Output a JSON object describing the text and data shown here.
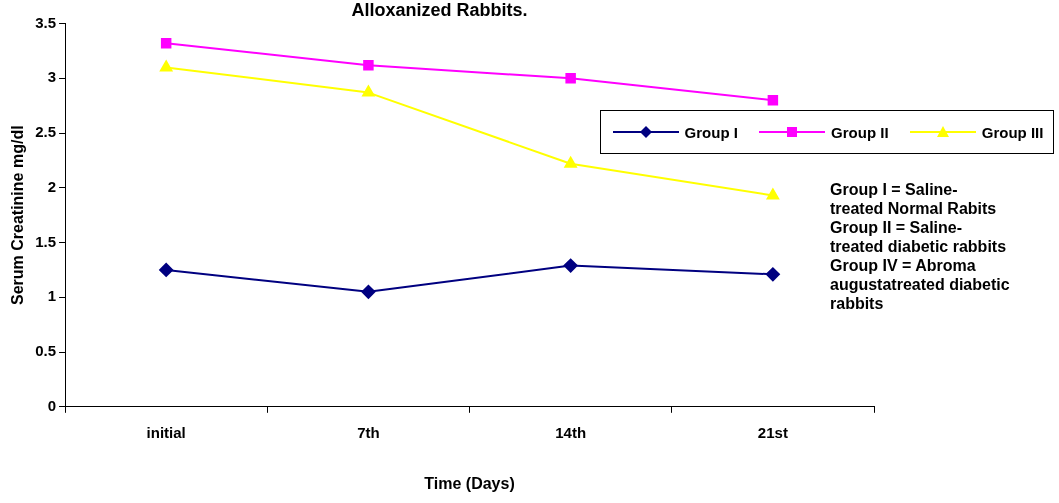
{
  "chart_data": {
    "type": "line",
    "title": "Alloxanized Rabbits.",
    "xlabel": "Time (Days)",
    "ylabel": "Serum Creatinine mg/dl",
    "categories": [
      "initial",
      "7th",
      "14th",
      "21st"
    ],
    "series": [
      {
        "name": "Group I",
        "color": "#000080",
        "marker": "diamond",
        "values": [
          1.25,
          1.05,
          1.29,
          1.21
        ]
      },
      {
        "name": "Group II",
        "color": "#ff00ff",
        "marker": "square",
        "values": [
          3.32,
          3.12,
          3.0,
          2.8
        ]
      },
      {
        "name": "Group III",
        "color": "#ffff00",
        "marker": "triangle",
        "values": [
          3.1,
          2.87,
          2.22,
          1.93
        ]
      }
    ],
    "ylim": [
      0,
      3.5
    ],
    "yticks": [
      0,
      0.5,
      1,
      1.5,
      2,
      2.5,
      3,
      3.5
    ],
    "grid": false,
    "legend": "right",
    "annotations": [
      "Group I = Saline-treated Normal Rabits\nGroup II = Saline-treated diabetic rabbits\nGroup IV = Abroma augustatreated diabetic rabbits"
    ]
  }
}
